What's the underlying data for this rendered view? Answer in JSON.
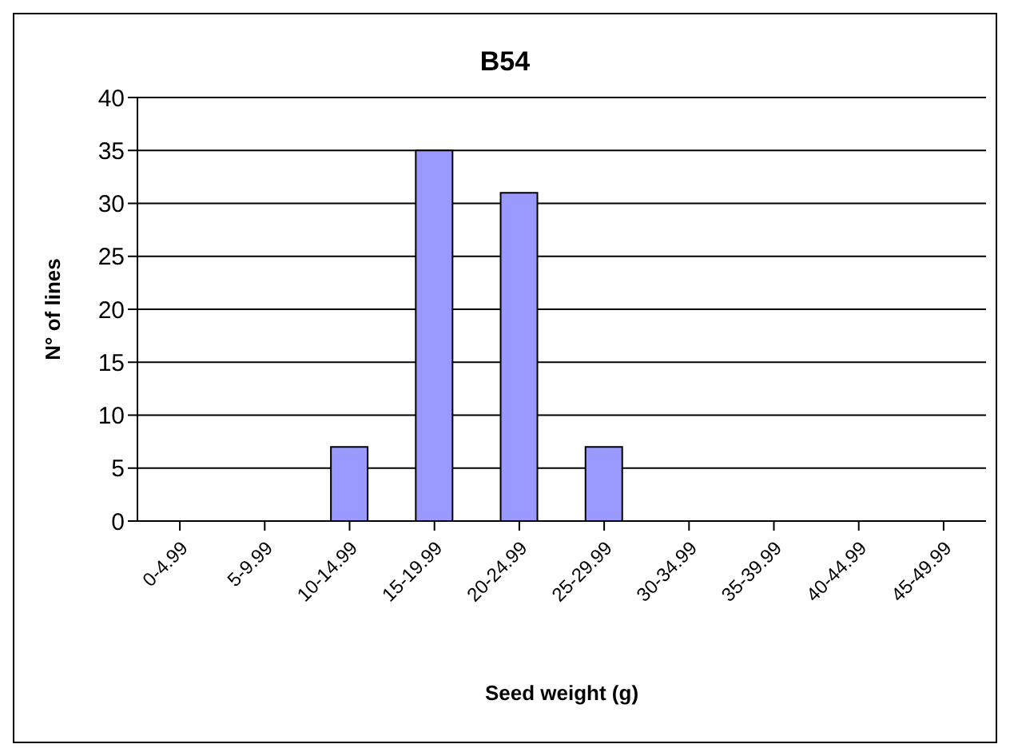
{
  "chart_data": {
    "type": "bar",
    "title": "B54",
    "xlabel": "Seed weight (g)",
    "ylabel": "N° of lines",
    "categories": [
      "0-4.99",
      "5-9.99",
      "10-14.99",
      "15-19.99",
      "20-24.99",
      "25-29.99",
      "30-34.99",
      "35-39.99",
      "40-44.99",
      "45-49.99"
    ],
    "values": [
      0,
      0,
      7,
      35,
      31,
      7,
      0,
      0,
      0,
      0
    ],
    "color": "#9999ff",
    "ylim": [
      0,
      40
    ],
    "yticks": [
      0,
      5,
      10,
      15,
      20,
      25,
      30,
      35,
      40
    ],
    "grid": "y",
    "legend": false
  }
}
